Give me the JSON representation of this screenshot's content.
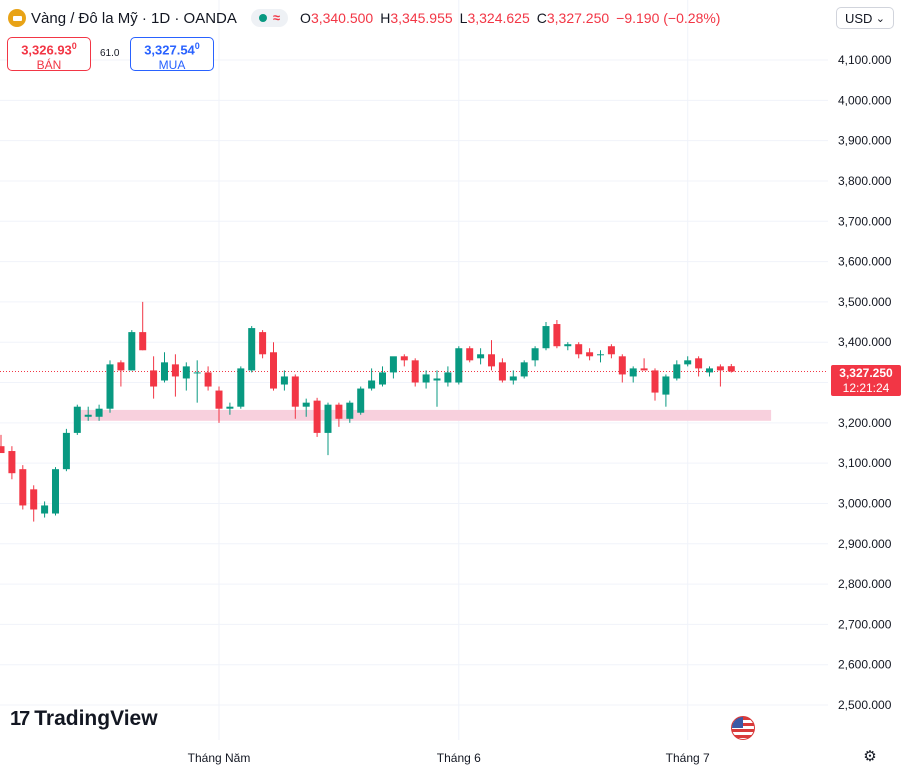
{
  "header": {
    "symbol_title": "Vàng / Đô la Mỹ · 1D · OANDA",
    "ohlc": {
      "open_label": "O",
      "open": "3,340.500",
      "high_label": "H",
      "high": "3,345.955",
      "low_label": "L",
      "low": "3,324.625",
      "close_label": "C",
      "close": "3,327.250",
      "change": "−9.190 (−0.28%)"
    },
    "currency": "USD"
  },
  "trade": {
    "sell_price": "3,326.93",
    "sell_price_super": "0",
    "sell_label": "BÁN",
    "spread": "61.0",
    "buy_price": "3,327.54",
    "buy_price_super": "0",
    "buy_label": "MUA"
  },
  "last_price": {
    "price": "3,327.250",
    "countdown": "12:21:24"
  },
  "logo": {
    "text": "TradingView"
  },
  "colors": {
    "up": "#089981",
    "down": "#f23645",
    "support_zone": "#f8d0dd",
    "grid": "#f0f3fa"
  },
  "chart_data": {
    "type": "candlestick",
    "title": "",
    "y_axis": {
      "ticks": [
        2500,
        2600,
        2700,
        2800,
        2900,
        3000,
        3100,
        3200,
        3300,
        3400,
        3500,
        3600,
        3700,
        3800,
        3900,
        4000,
        4100
      ],
      "tick_labels": [
        "2,500.000",
        "2,600.000",
        "2,700.000",
        "2,800.000",
        "2,900.000",
        "3,000.000",
        "3,100.000",
        "3,200.000",
        "3,300.000",
        "3,400.000",
        "3,500.000",
        "3,600.000",
        "3,700.000",
        "3,800.000",
        "3,900.000",
        "4,000.000",
        "4,100.000"
      ],
      "range": [
        2470,
        4160
      ],
      "position": "right"
    },
    "x_axis": {
      "labels": [
        {
          "text": "Tháng Năm",
          "candle_index": 20
        },
        {
          "text": "Tháng 6",
          "candle_index": 42
        },
        {
          "text": "Tháng 7",
          "candle_index": 63
        }
      ]
    },
    "last_price_line": 3327.25,
    "support_zone": {
      "low": 3205,
      "high": 3232,
      "from_index": 7,
      "to_index": 69
    },
    "candles": [
      {
        "o": 3142,
        "h": 3170,
        "l": 3125,
        "c": 3125
      },
      {
        "o": 3130,
        "h": 3142,
        "l": 3060,
        "c": 3075
      },
      {
        "o": 3085,
        "h": 3095,
        "l": 2985,
        "c": 2995
      },
      {
        "o": 3035,
        "h": 3045,
        "l": 2955,
        "c": 2985
      },
      {
        "o": 2975,
        "h": 3005,
        "l": 2965,
        "c": 2995
      },
      {
        "o": 2975,
        "h": 3090,
        "l": 2970,
        "c": 3085
      },
      {
        "o": 3085,
        "h": 3185,
        "l": 3080,
        "c": 3175
      },
      {
        "o": 3175,
        "h": 3245,
        "l": 3170,
        "c": 3240
      },
      {
        "o": 3215,
        "h": 3240,
        "l": 3205,
        "c": 3220
      },
      {
        "o": 3215,
        "h": 3245,
        "l": 3205,
        "c": 3235
      },
      {
        "o": 3235,
        "h": 3355,
        "l": 3225,
        "c": 3345
      },
      {
        "o": 3350,
        "h": 3355,
        "l": 3290,
        "c": 3330
      },
      {
        "o": 3330,
        "h": 3430,
        "l": 3330,
        "c": 3425
      },
      {
        "o": 3425,
        "h": 3500,
        "l": 3380,
        "c": 3380
      },
      {
        "o": 3330,
        "h": 3365,
        "l": 3260,
        "c": 3290
      },
      {
        "o": 3305,
        "h": 3375,
        "l": 3300,
        "c": 3350
      },
      {
        "o": 3345,
        "h": 3370,
        "l": 3265,
        "c": 3315
      },
      {
        "o": 3310,
        "h": 3350,
        "l": 3280,
        "c": 3340
      },
      {
        "o": 3325,
        "h": 3355,
        "l": 3250,
        "c": 3325
      },
      {
        "o": 3325,
        "h": 3340,
        "l": 3280,
        "c": 3290
      },
      {
        "o": 3280,
        "h": 3290,
        "l": 3200,
        "c": 3235
      },
      {
        "o": 3235,
        "h": 3250,
        "l": 3220,
        "c": 3240
      },
      {
        "o": 3240,
        "h": 3340,
        "l": 3235,
        "c": 3335
      },
      {
        "o": 3330,
        "h": 3440,
        "l": 3325,
        "c": 3435
      },
      {
        "o": 3425,
        "h": 3430,
        "l": 3360,
        "c": 3370
      },
      {
        "o": 3375,
        "h": 3400,
        "l": 3280,
        "c": 3285
      },
      {
        "o": 3295,
        "h": 3330,
        "l": 3280,
        "c": 3315
      },
      {
        "o": 3315,
        "h": 3320,
        "l": 3210,
        "c": 3240
      },
      {
        "o": 3240,
        "h": 3260,
        "l": 3215,
        "c": 3250
      },
      {
        "o": 3255,
        "h": 3262,
        "l": 3165,
        "c": 3175
      },
      {
        "o": 3175,
        "h": 3250,
        "l": 3120,
        "c": 3245
      },
      {
        "o": 3245,
        "h": 3250,
        "l": 3190,
        "c": 3210
      },
      {
        "o": 3210,
        "h": 3255,
        "l": 3200,
        "c": 3250
      },
      {
        "o": 3225,
        "h": 3290,
        "l": 3220,
        "c": 3285
      },
      {
        "o": 3285,
        "h": 3335,
        "l": 3280,
        "c": 3305
      },
      {
        "o": 3295,
        "h": 3340,
        "l": 3290,
        "c": 3325
      },
      {
        "o": 3325,
        "h": 3350,
        "l": 3310,
        "c": 3365
      },
      {
        "o": 3365,
        "h": 3370,
        "l": 3340,
        "c": 3355
      },
      {
        "o": 3355,
        "h": 3360,
        "l": 3290,
        "c": 3300
      },
      {
        "o": 3300,
        "h": 3330,
        "l": 3285,
        "c": 3320
      },
      {
        "o": 3305,
        "h": 3330,
        "l": 3240,
        "c": 3310
      },
      {
        "o": 3300,
        "h": 3340,
        "l": 3290,
        "c": 3325
      },
      {
        "o": 3300,
        "h": 3390,
        "l": 3295,
        "c": 3385
      },
      {
        "o": 3385,
        "h": 3390,
        "l": 3350,
        "c": 3355
      },
      {
        "o": 3360,
        "h": 3385,
        "l": 3345,
        "c": 3370
      },
      {
        "o": 3370,
        "h": 3405,
        "l": 3330,
        "c": 3340
      },
      {
        "o": 3350,
        "h": 3360,
        "l": 3300,
        "c": 3305
      },
      {
        "o": 3305,
        "h": 3330,
        "l": 3295,
        "c": 3315
      },
      {
        "o": 3315,
        "h": 3355,
        "l": 3310,
        "c": 3350
      },
      {
        "o": 3355,
        "h": 3390,
        "l": 3340,
        "c": 3385
      },
      {
        "o": 3385,
        "h": 3450,
        "l": 3380,
        "c": 3440
      },
      {
        "o": 3445,
        "h": 3455,
        "l": 3385,
        "c": 3390
      },
      {
        "o": 3390,
        "h": 3400,
        "l": 3380,
        "c": 3395
      },
      {
        "o": 3395,
        "h": 3400,
        "l": 3360,
        "c": 3370
      },
      {
        "o": 3375,
        "h": 3385,
        "l": 3355,
        "c": 3365
      },
      {
        "o": 3370,
        "h": 3380,
        "l": 3350,
        "c": 3370
      },
      {
        "o": 3390,
        "h": 3395,
        "l": 3360,
        "c": 3370
      },
      {
        "o": 3365,
        "h": 3370,
        "l": 3300,
        "c": 3320
      },
      {
        "o": 3315,
        "h": 3340,
        "l": 3300,
        "c": 3335
      },
      {
        "o": 3335,
        "h": 3360,
        "l": 3330,
        "c": 3330
      },
      {
        "o": 3330,
        "h": 3335,
        "l": 3255,
        "c": 3275
      },
      {
        "o": 3270,
        "h": 3320,
        "l": 3240,
        "c": 3315
      },
      {
        "o": 3310,
        "h": 3355,
        "l": 3305,
        "c": 3345
      },
      {
        "o": 3345,
        "h": 3365,
        "l": 3340,
        "c": 3355
      },
      {
        "o": 3360,
        "h": 3365,
        "l": 3315,
        "c": 3335
      },
      {
        "o": 3325,
        "h": 3340,
        "l": 3315,
        "c": 3335
      },
      {
        "o": 3340,
        "h": 3345,
        "l": 3290,
        "c": 3330
      },
      {
        "o": 3340.5,
        "h": 3345.955,
        "l": 3324.625,
        "c": 3327.25
      }
    ]
  }
}
